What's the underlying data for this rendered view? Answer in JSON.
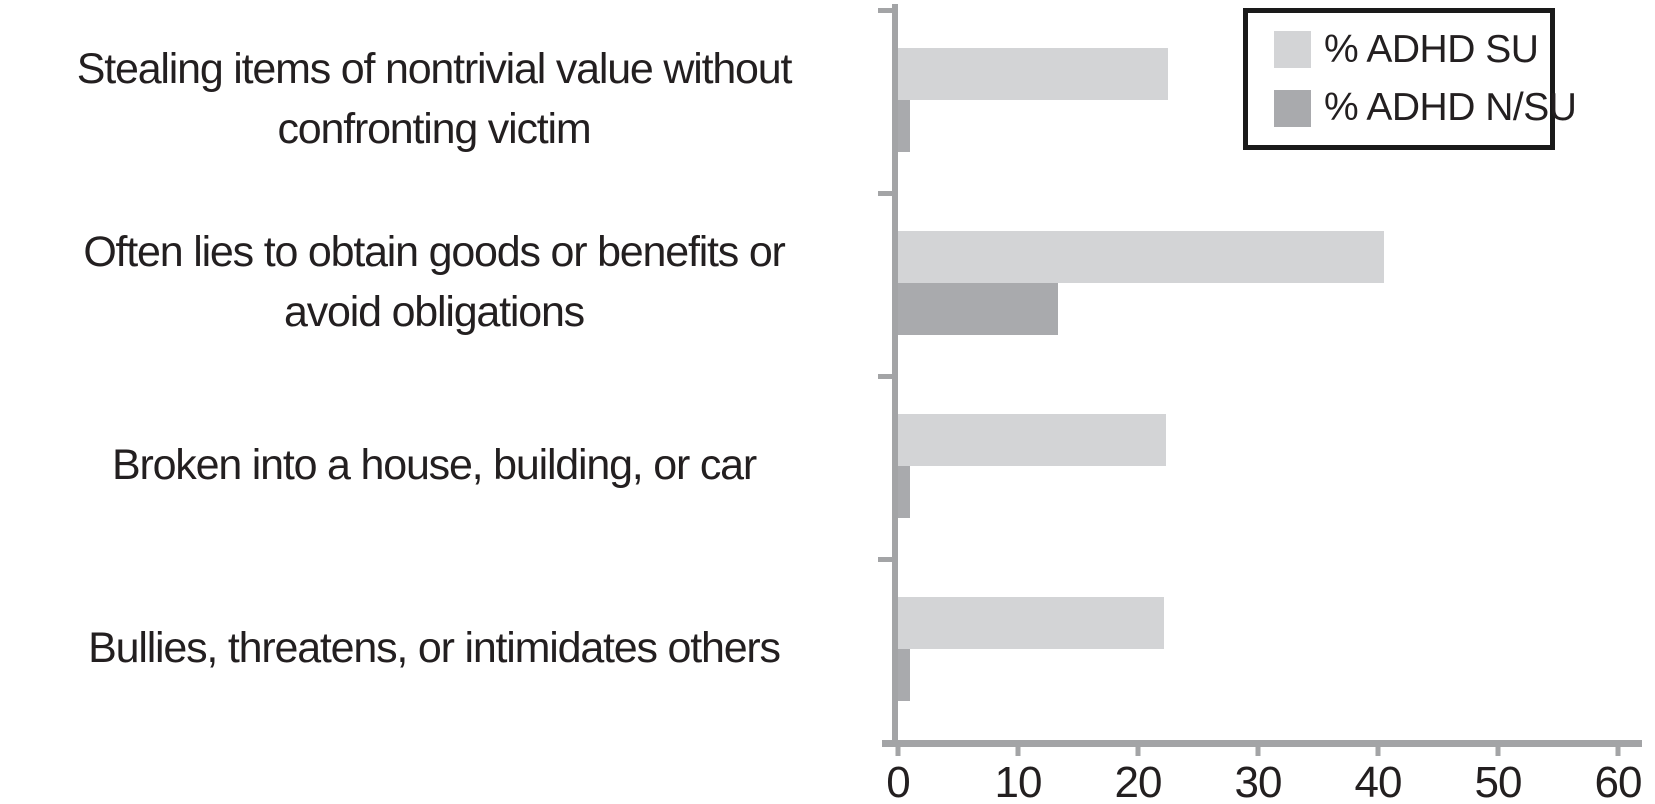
{
  "chart_data": {
    "type": "bar",
    "orientation": "horizontal",
    "title": "",
    "xlabel": "",
    "ylabel": "",
    "categories": [
      "Stealing items of nontrivial value without\nconfronting victim",
      "Often lies to obtain goods or benefits or\navoid obligations",
      "Broken into a house, building, or car",
      "Bullies, threatens, or intimidates others"
    ],
    "series": [
      {
        "name": "% ADHD SU",
        "color": "#d3d4d6",
        "values": [
          22.5,
          40.5,
          22.3,
          22.2
        ]
      },
      {
        "name": "% ADHD N/SU",
        "color": "#a9aaad",
        "values": [
          1,
          13.3,
          1,
          1
        ]
      }
    ],
    "xlim": [
      0,
      60
    ],
    "x_ticks": [
      0,
      10,
      20,
      30,
      40,
      50,
      60
    ],
    "grid": false,
    "legend_position": "top-right"
  },
  "legend": {
    "items": [
      {
        "label": "% ADHD SU",
        "color": "#d3d4d6"
      },
      {
        "label": "% ADHD N/SU",
        "color": "#a9aaad"
      }
    ]
  },
  "colors": {
    "axis": "#a3a4a6",
    "text": "#231f20",
    "legend_border": "#1a1a1a",
    "series_su": "#d3d4d6",
    "series_nsu": "#a9aaad",
    "background": "#ffffff"
  }
}
